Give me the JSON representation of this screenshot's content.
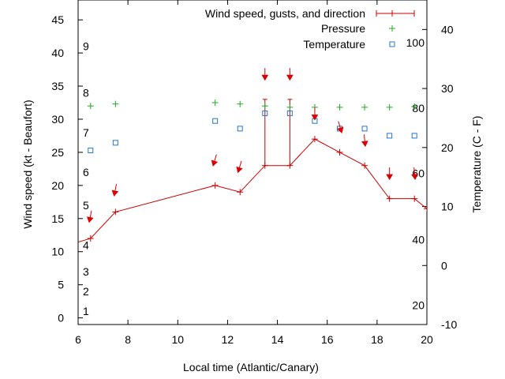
{
  "chart_data": {
    "type": "line",
    "title": "",
    "xlabel": "Local time (Atlantic/Canary)",
    "ylabel_left": "Wind speed (kt - Beaufort)",
    "ylabel_right": "Temperature (C - F)",
    "xlim": [
      6,
      20
    ],
    "ylim_left": [
      -1,
      48
    ],
    "ylim_right": [
      -10,
      45
    ],
    "x_ticks": [
      6,
      8,
      10,
      12,
      14,
      16,
      18,
      20
    ],
    "y_left_ticks": [
      0,
      5,
      10,
      15,
      20,
      25,
      30,
      35,
      40,
      45
    ],
    "y_right_ticks": [
      -10,
      0,
      10,
      20,
      30,
      40
    ],
    "beaufort_labels": [
      {
        "label": "1",
        "kt": 1
      },
      {
        "label": "2",
        "kt": 4
      },
      {
        "label": "3",
        "kt": 7
      },
      {
        "label": "4",
        "kt": 11
      },
      {
        "label": "5",
        "kt": 17
      },
      {
        "label": "6",
        "kt": 22
      },
      {
        "label": "7",
        "kt": 28
      },
      {
        "label": "8",
        "kt": 34
      },
      {
        "label": "9",
        "kt": 41
      }
    ],
    "fahrenheit_labels": [
      {
        "label": "20",
        "celsius": -6.7
      },
      {
        "label": "40",
        "celsius": 4.4
      },
      {
        "label": "60",
        "celsius": 15.6
      },
      {
        "label": "80",
        "celsius": 26.7
      },
      {
        "label": "100",
        "celsius": 37.8
      }
    ],
    "legend": {
      "position": "top-right",
      "entries": [
        "Wind speed, gusts, and direction",
        "Pressure",
        "Temperature"
      ]
    },
    "colors": {
      "wind": "#cc0000",
      "arrow": "#dd0000",
      "pressure": "#22aa22",
      "temperature": "#2277cc"
    },
    "series": [
      {
        "name": "Wind speed, gusts, and direction",
        "x": [
          5.6,
          6.5,
          7.5,
          11.5,
          12.5,
          13.5,
          14.5,
          15.5,
          16.5,
          17.5,
          18.5,
          19.5,
          20.0
        ],
        "values": [
          11,
          12,
          16,
          20,
          19,
          23,
          23,
          27,
          25,
          23,
          18,
          18,
          16.5
        ],
        "gusts": [
          null,
          null,
          null,
          null,
          null,
          33,
          33,
          null,
          null,
          null,
          null,
          null,
          null
        ]
      },
      {
        "name": "Pressure",
        "x": [
          6.5,
          7.5,
          11.5,
          12.5,
          13.5,
          14.5,
          15.5,
          16.5,
          17.5,
          18.5,
          19.5
        ],
        "values": [
          32,
          32.3,
          32.5,
          32.3,
          32,
          31.8,
          31.8,
          31.8,
          31.8,
          31.8,
          31.9
        ]
      },
      {
        "name": "Temperature",
        "x": [
          6.5,
          7.5,
          11.5,
          12.5,
          13.5,
          14.5,
          15.5,
          16.5,
          17.5,
          18.5,
          19.5
        ],
        "values": [
          19.5,
          20.8,
          24.5,
          23.2,
          25.8,
          25.8,
          24.5,
          23.2,
          23.2,
          22,
          22
        ]
      }
    ],
    "direction_arrows": [
      {
        "x": 6.5,
        "kt": 15.5,
        "dx": -0.2,
        "dy": 1
      },
      {
        "x": 7.5,
        "kt": 19.5,
        "dx": -0.2,
        "dy": 1
      },
      {
        "x": 11.5,
        "kt": 24,
        "dx": -0.3,
        "dy": 1
      },
      {
        "x": 12.5,
        "kt": 23,
        "dx": -0.3,
        "dy": 1
      },
      {
        "x": 13.5,
        "kt": 37,
        "dx": 0,
        "dy": 1
      },
      {
        "x": 14.5,
        "kt": 37,
        "dx": 0,
        "dy": 1
      },
      {
        "x": 15.5,
        "kt": 31,
        "dx": 0,
        "dy": 1
      },
      {
        "x": 16.5,
        "kt": 29,
        "dx": 0.3,
        "dy": 1
      },
      {
        "x": 17.5,
        "kt": 27,
        "dx": 0.1,
        "dy": 1
      },
      {
        "x": 18.5,
        "kt": 22,
        "dx": 0,
        "dy": 1
      },
      {
        "x": 19.5,
        "kt": 22,
        "dx": 0.1,
        "dy": 1
      }
    ]
  }
}
